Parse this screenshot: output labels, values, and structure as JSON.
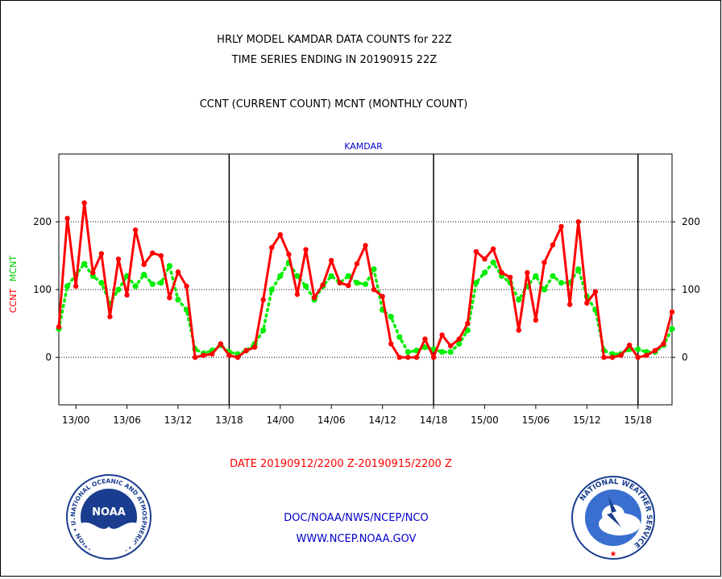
{
  "chart_data": {
    "type": "line",
    "title_lines": [
      "HRLY MODEL KAMDAR DATA COUNTS for 22Z",
      "TIME SERIES ENDING IN 20190915 22Z"
    ],
    "subtitle": "CCNT (CURRENT COUNT) MCNT (MONTHLY COUNT)",
    "station": "KAMDAR",
    "ylabel_ccnt": "CCNT",
    "ylabel_mcnt": "MCNT",
    "xlabel": "DATE 20190912/2200 Z-20190915/2200 Z",
    "ylim": [
      -70,
      300
    ],
    "yticks": [
      0,
      100,
      200
    ],
    "ytick_labels": [
      "0",
      "100",
      "200"
    ],
    "x_start_hour": 0,
    "x_end_hour": 72,
    "xticks": [
      2,
      8,
      14,
      20,
      26,
      32,
      38,
      44,
      50,
      56,
      62,
      68
    ],
    "xtick_labels": [
      "13/00",
      "13/06",
      "13/12",
      "13/18",
      "14/00",
      "14/06",
      "14/12",
      "14/18",
      "15/00",
      "15/06",
      "15/12",
      "15/18"
    ],
    "day_dividers": [
      20,
      44,
      68
    ],
    "grid_y": [
      0,
      100,
      200
    ],
    "series": [
      {
        "name": "CCNT",
        "color": "#ff0000",
        "values": [
          45,
          205,
          105,
          228,
          125,
          153,
          60,
          145,
          92,
          188,
          137,
          154,
          150,
          88,
          126,
          105,
          0,
          3,
          5,
          20,
          3,
          0,
          10,
          15,
          85,
          162,
          181,
          152,
          93,
          159,
          88,
          107,
          143,
          110,
          106,
          138,
          165,
          100,
          90,
          20,
          0,
          0,
          0,
          27,
          0,
          33,
          17,
          27,
          50,
          156,
          145,
          160,
          125,
          118,
          40,
          125,
          55,
          140,
          166,
          193,
          78,
          200,
          80,
          97,
          0,
          0,
          3,
          18,
          0,
          3,
          10,
          20,
          67
        ]
      },
      {
        "name": "MCNT",
        "color": "#00ee00",
        "values": [
          42,
          105,
          122,
          138,
          120,
          110,
          80,
          100,
          120,
          105,
          122,
          108,
          110,
          135,
          85,
          70,
          12,
          6,
          10,
          18,
          8,
          5,
          10,
          20,
          40,
          100,
          120,
          140,
          120,
          105,
          85,
          105,
          120,
          110,
          120,
          110,
          108,
          130,
          70,
          60,
          30,
          8,
          10,
          15,
          12,
          8,
          8,
          20,
          40,
          110,
          125,
          140,
          120,
          110,
          85,
          105,
          120,
          100,
          120,
          110,
          110,
          130,
          90,
          70,
          10,
          5,
          5,
          12,
          12,
          8,
          8,
          18,
          42
        ]
      }
    ]
  },
  "footer": {
    "org_line": "DOC/NOAA/NWS/NCEP/NCO",
    "url_line": "WWW.NCEP.NOAA.GOV",
    "noaa_logo_text": "NOAA",
    "noaa_ring_text": "NATIONAL OCEANIC AND ATMOSPHERIC ADMINISTRATION • U.S. DEPARTMENT OF COMMERCE •",
    "nws_ring_text": "NATIONAL WEATHER SERVICE",
    "colors": {
      "noaa_blue": "#1a3d8f",
      "title_blue": "#0000cc"
    }
  }
}
